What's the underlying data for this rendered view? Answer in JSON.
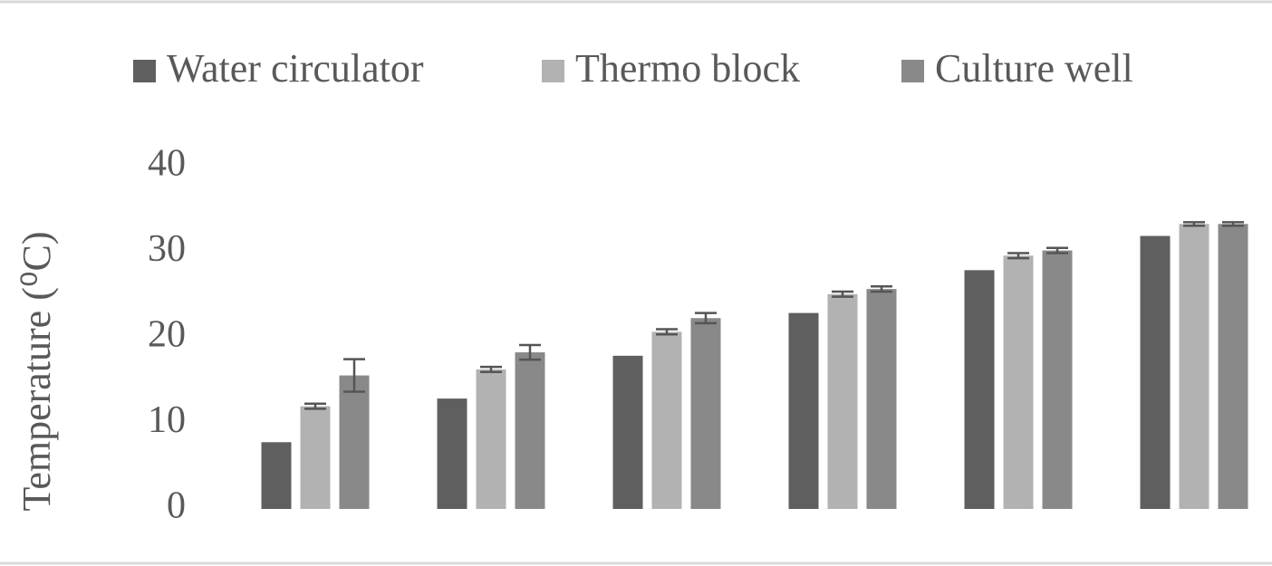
{
  "chart_data": {
    "type": "bar",
    "y_label": "Temperature (⁰C)",
    "categories": [
      null,
      null,
      null,
      null,
      null,
      null
    ],
    "series": [
      {
        "name": "Water circulator",
        "color": "#5f5f5f",
        "values": [
          7.8,
          12.9,
          17.9,
          22.9,
          27.9,
          31.9
        ]
      },
      {
        "name": "Thermo block",
        "color": "#b2b2b2",
        "values": [
          12.0,
          16.3,
          20.7,
          25.1,
          29.6,
          33.3
        ],
        "errors": [
          0.3,
          0.3,
          0.3,
          0.3,
          0.3,
          0.2
        ]
      },
      {
        "name": "Culture well",
        "color": "#898989",
        "values": [
          15.6,
          18.3,
          22.3,
          25.7,
          30.2,
          33.3
        ],
        "errors": [
          1.9,
          0.85,
          0.6,
          0.3,
          0.3,
          0.2
        ]
      }
    ],
    "ylim": [
      0,
      40
    ],
    "yticks": [
      0,
      10,
      20,
      30,
      40
    ],
    "grid": false,
    "legend": "top"
  }
}
